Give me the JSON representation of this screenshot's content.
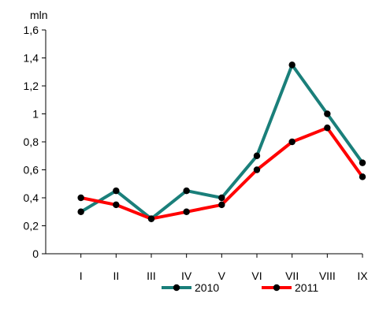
{
  "chart_data": {
    "type": "line",
    "unit_label": "mln",
    "categories": [
      "I",
      "II",
      "III",
      "IV",
      "V",
      "VI",
      "VII",
      "VIII",
      "IX"
    ],
    "ylim": [
      0,
      1.6
    ],
    "yticks": [
      0,
      0.2,
      0.4,
      0.6,
      0.8,
      1,
      1.2,
      1.4,
      1.6
    ],
    "ytick_labels": [
      "0",
      "0,2",
      "0,4",
      "0,6",
      "0,8",
      "1",
      "1,2",
      "1,4",
      "1,6"
    ],
    "grid": false,
    "legend_position": "bottom",
    "series": [
      {
        "name": "2010",
        "color": "#1a7f7a",
        "values": [
          0.3,
          0.45,
          0.25,
          0.45,
          0.4,
          0.7,
          1.35,
          1.0,
          0.65
        ]
      },
      {
        "name": "2011",
        "color": "#ff0000",
        "values": [
          0.4,
          0.35,
          0.25,
          0.3,
          0.35,
          0.6,
          0.8,
          0.9,
          0.55
        ]
      }
    ],
    "marker_color": "#000000"
  }
}
